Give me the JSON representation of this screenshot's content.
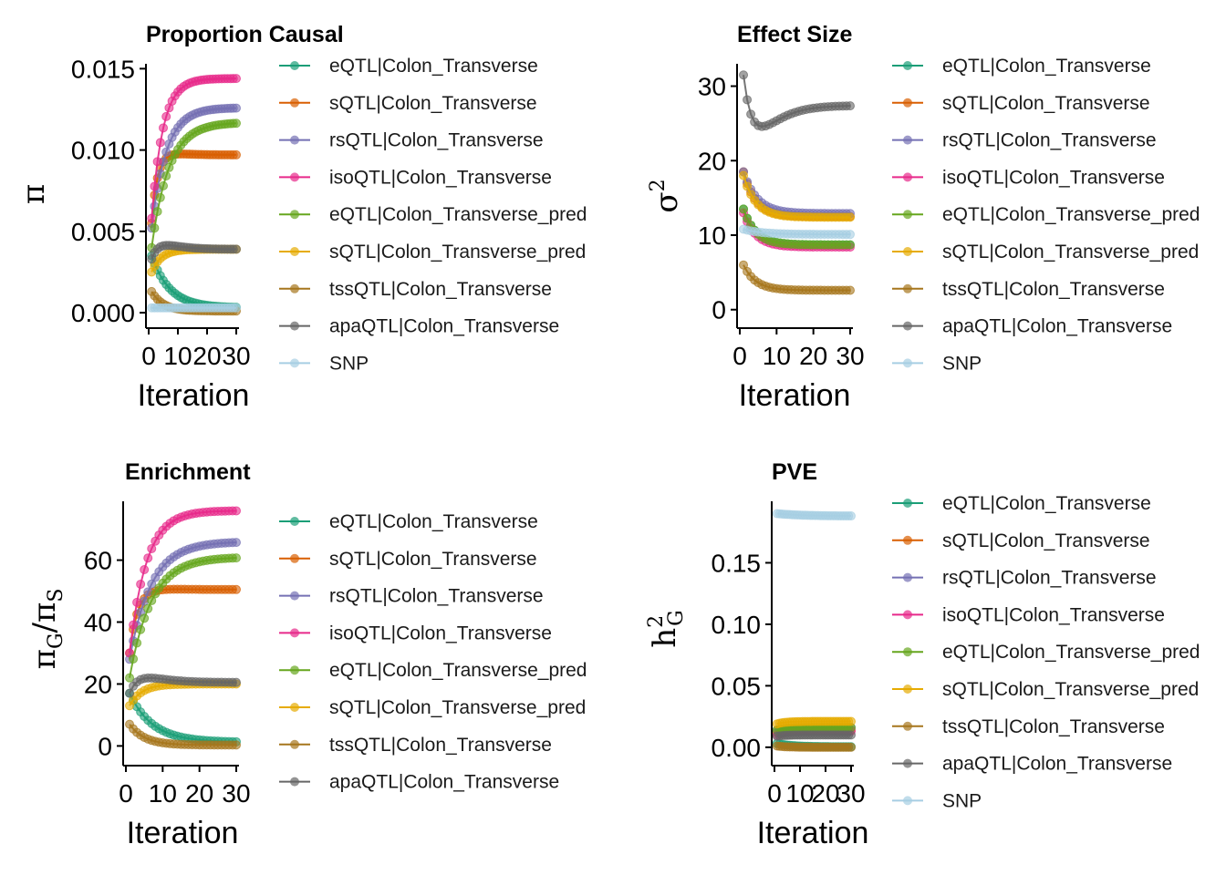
{
  "iterations": [
    1,
    2,
    3,
    4,
    5,
    6,
    7,
    8,
    9,
    10,
    11,
    12,
    13,
    14,
    15,
    16,
    17,
    18,
    19,
    20,
    21,
    22,
    23,
    24,
    25,
    26,
    27,
    28,
    29,
    30
  ],
  "chart_data": [
    {
      "type": "line",
      "title": "Proportion Causal",
      "xlabel": "Iteration",
      "ylabel": "π",
      "xlim": [
        0,
        30
      ],
      "ylim": [
        -0.0005,
        0.0153
      ],
      "xticks": [
        0,
        10,
        20,
        30
      ],
      "xtick_labels": [
        "0",
        "10",
        "20",
        "30"
      ],
      "yticks": [
        0,
        0.005,
        0.01,
        0.015
      ],
      "ytick_labels": [
        "0.000",
        "0.005",
        "0.010",
        "0.015"
      ],
      "legend": [
        {
          "name": "eQTL|Colon_Transverse",
          "color": "#1b9e77"
        },
        {
          "name": "sQTL|Colon_Transverse",
          "color": "#d95f02"
        },
        {
          "name": "rsQTL|Colon_Transverse",
          "color": "#7570b3"
        },
        {
          "name": "isoQTL|Colon_Transverse",
          "color": "#e7298a"
        },
        {
          "name": "eQTL|Colon_Transverse_pred",
          "color": "#66a61e"
        },
        {
          "name": "sQTL|Colon_Transverse_pred",
          "color": "#e6ab02"
        },
        {
          "name": "tssQTL|Colon_Transverse",
          "color": "#a6761d"
        },
        {
          "name": "apaQTL|Colon_Transverse",
          "color": "#666666"
        },
        {
          "name": "SNP",
          "color": "#a6cee3"
        }
      ],
      "series": [
        {
          "name": "eQTL|Colon_Transverse",
          "start": 0.0035,
          "end": 0.0003,
          "rate": 0.16
        },
        {
          "name": "sQTL|Colon_Transverse",
          "start": 0.0055,
          "end": 0.0097,
          "rate": 0.5,
          "peak": 0.0001
        },
        {
          "name": "rsQTL|Colon_Transverse",
          "start": 0.0052,
          "end": 0.0126,
          "rate": 0.2
        },
        {
          "name": "isoQTL|Colon_Transverse",
          "start": 0.0058,
          "end": 0.0144,
          "rate": 0.26
        },
        {
          "name": "eQTL|Colon_Transverse_pred",
          "start": 0.004,
          "end": 0.0117,
          "rate": 0.17
        },
        {
          "name": "sQTL|Colon_Transverse_pred",
          "start": 0.0025,
          "end": 0.0039,
          "rate": 0.3
        },
        {
          "name": "tssQTL|Colon_Transverse",
          "start": 0.0013,
          "end": 0.0001,
          "rate": 0.25
        },
        {
          "name": "apaQTL|Colon_Transverse",
          "start": 0.0033,
          "end": 0.0039,
          "rate": 0.5,
          "peak": 0.0002
        },
        {
          "name": "SNP",
          "start": 0.0003,
          "end": 0.0003,
          "rate": 0.2
        }
      ]
    },
    {
      "type": "line",
      "title": "Effect Size",
      "xlabel": "Iteration",
      "ylabel": "σ²",
      "xlim": [
        0,
        30
      ],
      "ylim": [
        -1.5,
        33
      ],
      "xticks": [
        0,
        10,
        20,
        30
      ],
      "xtick_labels": [
        "0",
        "10",
        "20",
        "30"
      ],
      "yticks": [
        0,
        10,
        20,
        30
      ],
      "ytick_labels": [
        "0",
        "10",
        "20",
        "30"
      ],
      "legend": [
        {
          "name": "eQTL|Colon_Transverse",
          "color": "#1b9e77"
        },
        {
          "name": "sQTL|Colon_Transverse",
          "color": "#d95f02"
        },
        {
          "name": "rsQTL|Colon_Transverse",
          "color": "#7570b3"
        },
        {
          "name": "isoQTL|Colon_Transverse",
          "color": "#e7298a"
        },
        {
          "name": "eQTL|Colon_Transverse_pred",
          "color": "#66a61e"
        },
        {
          "name": "sQTL|Colon_Transverse_pred",
          "color": "#e6ab02"
        },
        {
          "name": "tssQTL|Colon_Transverse",
          "color": "#a6761d"
        },
        {
          "name": "apaQTL|Colon_Transverse",
          "color": "#666666"
        },
        {
          "name": "SNP",
          "color": "#a6cee3"
        }
      ],
      "series": [
        {
          "name": "eQTL|Colon_Transverse",
          "start": 13.5,
          "end": 8.7,
          "rate": 0.3
        },
        {
          "name": "sQTL|Colon_Transverse",
          "start": 18.5,
          "end": 12.5,
          "rate": 0.3
        },
        {
          "name": "rsQTL|Colon_Transverse",
          "start": 18.5,
          "end": 12.9,
          "rate": 0.27
        },
        {
          "name": "isoQTL|Colon_Transverse",
          "start": 13.0,
          "end": 8.4,
          "rate": 0.3
        },
        {
          "name": "eQTL|Colon_Transverse_pred",
          "start": 13.5,
          "end": 8.7,
          "rate": 0.3
        },
        {
          "name": "sQTL|Colon_Transverse_pred",
          "start": 18.0,
          "end": 12.4,
          "rate": 0.3
        },
        {
          "name": "tssQTL|Colon_Transverse",
          "start": 6.0,
          "end": 2.6,
          "rate": 0.3
        },
        {
          "name": "apaQTL|Colon_Transverse",
          "start": 31.5,
          "end": 27.4,
          "rate": 0.5,
          "peak": -2.2
        },
        {
          "name": "SNP",
          "start": 10.8,
          "end": 10.1,
          "rate": 0.2
        }
      ]
    },
    {
      "type": "line",
      "title": "Enrichment",
      "xlabel": "Iteration",
      "ylabel": "πG/πS",
      "xlim": [
        0,
        30
      ],
      "ylim": [
        -4,
        79
      ],
      "xticks": [
        0,
        10,
        20,
        30
      ],
      "xtick_labels": [
        "0",
        "10",
        "20",
        "30"
      ],
      "yticks": [
        0,
        20,
        40,
        60
      ],
      "ytick_labels": [
        "0",
        "20",
        "40",
        "60"
      ],
      "legend": [
        {
          "name": "eQTL|Colon_Transverse",
          "color": "#1b9e77"
        },
        {
          "name": "sQTL|Colon_Transverse",
          "color": "#d95f02"
        },
        {
          "name": "rsQTL|Colon_Transverse",
          "color": "#7570b3"
        },
        {
          "name": "isoQTL|Colon_Transverse",
          "color": "#e7298a"
        },
        {
          "name": "eQTL|Colon_Transverse_pred",
          "color": "#66a61e"
        },
        {
          "name": "sQTL|Colon_Transverse_pred",
          "color": "#e6ab02"
        },
        {
          "name": "tssQTL|Colon_Transverse",
          "color": "#a6761d"
        },
        {
          "name": "apaQTL|Colon_Transverse",
          "color": "#666666"
        }
      ],
      "series": [
        {
          "name": "eQTL|Colon_Transverse",
          "start": 17,
          "end": 1.2,
          "rate": 0.16
        },
        {
          "name": "sQTL|Colon_Transverse",
          "start": 30,
          "end": 50.5,
          "rate": 0.45,
          "peak": 0.3
        },
        {
          "name": "rsQTL|Colon_Transverse",
          "start": 28,
          "end": 66,
          "rate": 0.17
        },
        {
          "name": "isoQTL|Colon_Transverse",
          "start": 30,
          "end": 76,
          "rate": 0.22
        },
        {
          "name": "eQTL|Colon_Transverse_pred",
          "start": 22,
          "end": 61,
          "rate": 0.17
        },
        {
          "name": "sQTL|Colon_Transverse_pred",
          "start": 13,
          "end": 20,
          "rate": 0.3
        },
        {
          "name": "tssQTL|Colon_Transverse",
          "start": 7,
          "end": 0.3,
          "rate": 0.25
        },
        {
          "name": "apaQTL|Colon_Transverse",
          "start": 17,
          "end": 20.5,
          "rate": 0.5,
          "peak": 1.2
        }
      ]
    },
    {
      "type": "line",
      "title": "PVE",
      "xlabel": "Iteration",
      "ylabel": "h²G",
      "xlim": [
        0,
        30
      ],
      "ylim": [
        -0.009,
        0.2
      ],
      "xticks": [
        0,
        10,
        20,
        30
      ],
      "xtick_labels": [
        "0",
        "10",
        "20",
        "30"
      ],
      "yticks": [
        0,
        0.05,
        0.1,
        0.15
      ],
      "ytick_labels": [
        "0.00",
        "0.05",
        "0.10",
        "0.15"
      ],
      "legend": [
        {
          "name": "eQTL|Colon_Transverse",
          "color": "#1b9e77"
        },
        {
          "name": "sQTL|Colon_Transverse",
          "color": "#d95f02"
        },
        {
          "name": "rsQTL|Colon_Transverse",
          "color": "#7570b3"
        },
        {
          "name": "isoQTL|Colon_Transverse",
          "color": "#e7298a"
        },
        {
          "name": "eQTL|Colon_Transverse_pred",
          "color": "#66a61e"
        },
        {
          "name": "sQTL|Colon_Transverse_pred",
          "color": "#e6ab02"
        },
        {
          "name": "tssQTL|Colon_Transverse",
          "color": "#a6761d"
        },
        {
          "name": "apaQTL|Colon_Transverse",
          "color": "#666666"
        },
        {
          "name": "SNP",
          "color": "#a6cee3"
        }
      ],
      "series": [
        {
          "name": "eQTL|Colon_Transverse",
          "start": 0.003,
          "end": 0.0004,
          "rate": 0.16
        },
        {
          "name": "sQTL|Colon_Transverse",
          "start": 0.012,
          "end": 0.014,
          "rate": 0.3
        },
        {
          "name": "rsQTL|Colon_Transverse",
          "start": 0.014,
          "end": 0.016,
          "rate": 0.3
        },
        {
          "name": "isoQTL|Colon_Transverse",
          "start": 0.01,
          "end": 0.013,
          "rate": 0.3
        },
        {
          "name": "eQTL|Colon_Transverse_pred",
          "start": 0.014,
          "end": 0.016,
          "rate": 0.3
        },
        {
          "name": "sQTL|Colon_Transverse_pred",
          "start": 0.019,
          "end": 0.021,
          "rate": 0.3
        },
        {
          "name": "tssQTL|Colon_Transverse",
          "start": 0.001,
          "end": 0.0,
          "rate": 0.25
        },
        {
          "name": "apaQTL|Colon_Transverse",
          "start": 0.009,
          "end": 0.01,
          "rate": 0.3
        },
        {
          "name": "SNP",
          "start": 0.19,
          "end": 0.188,
          "rate": 0.1
        }
      ]
    }
  ]
}
